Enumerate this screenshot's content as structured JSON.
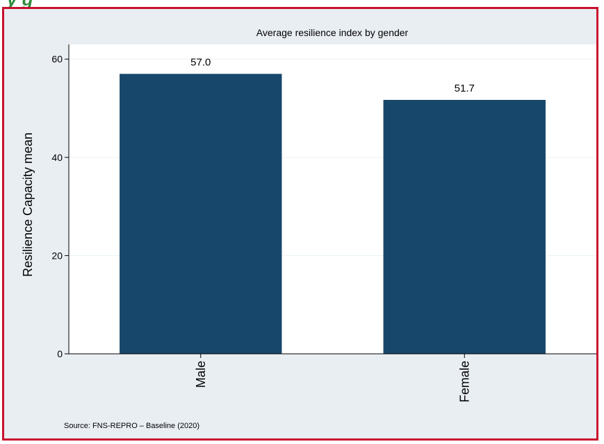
{
  "page": {
    "heading_fragment": "y g"
  },
  "chart_data": {
    "type": "bar",
    "title": "Average resilience index by gender",
    "xlabel": "",
    "ylabel": "Resilience Capacity mean",
    "categories": [
      "Male",
      "Female"
    ],
    "values": [
      57.0,
      51.7
    ],
    "value_labels": [
      "57.0",
      "51.7"
    ],
    "ylim": [
      0,
      63
    ],
    "yticks": [
      0,
      20,
      40,
      60
    ],
    "grid": true,
    "legend": "none",
    "bar_color": "#17476b",
    "background_color": "#e9eef3",
    "plot_background_color": "#ffffff",
    "note": "Source: FNS-REPRO – Baseline (2020)"
  },
  "colors": {
    "frame_border": "#c8102e",
    "heading": "#2e8b3a"
  }
}
